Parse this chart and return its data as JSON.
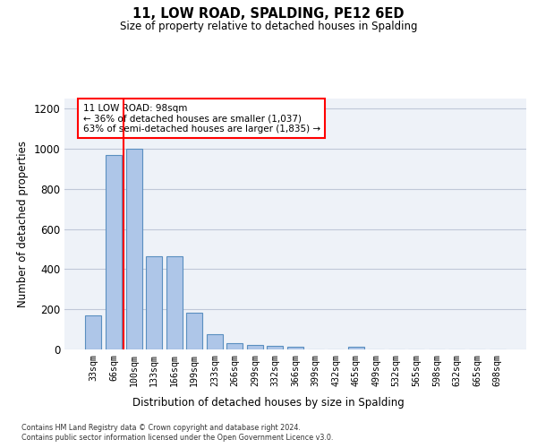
{
  "title1": "11, LOW ROAD, SPALDING, PE12 6ED",
  "title2": "Size of property relative to detached houses in Spalding",
  "xlabel": "Distribution of detached houses by size in Spalding",
  "ylabel": "Number of detached properties",
  "footer1": "Contains HM Land Registry data © Crown copyright and database right 2024.",
  "footer2": "Contains public sector information licensed under the Open Government Licence v3.0.",
  "categories": [
    "33sqm",
    "66sqm",
    "100sqm",
    "133sqm",
    "166sqm",
    "199sqm",
    "233sqm",
    "266sqm",
    "299sqm",
    "332sqm",
    "366sqm",
    "399sqm",
    "432sqm",
    "465sqm",
    "499sqm",
    "532sqm",
    "565sqm",
    "598sqm",
    "632sqm",
    "665sqm",
    "698sqm"
  ],
  "values": [
    170,
    970,
    1000,
    465,
    465,
    185,
    75,
    30,
    22,
    20,
    12,
    0,
    0,
    14,
    0,
    0,
    0,
    0,
    0,
    0,
    0
  ],
  "bar_color": "#aec6e8",
  "bar_edge_color": "#5a8fc0",
  "grid_color": "#c0c8d8",
  "background_color": "#eef2f8",
  "vline_x": 2.0,
  "vline_color": "red",
  "annotation_text": "11 LOW ROAD: 98sqm\n← 36% of detached houses are smaller (1,037)\n63% of semi-detached houses are larger (1,835) →",
  "annotation_box_color": "white",
  "annotation_box_edge_color": "red",
  "ylim": [
    0,
    1250
  ],
  "yticks": [
    0,
    200,
    400,
    600,
    800,
    1000,
    1200
  ],
  "figwidth": 6.0,
  "figheight": 5.0,
  "dpi": 100
}
